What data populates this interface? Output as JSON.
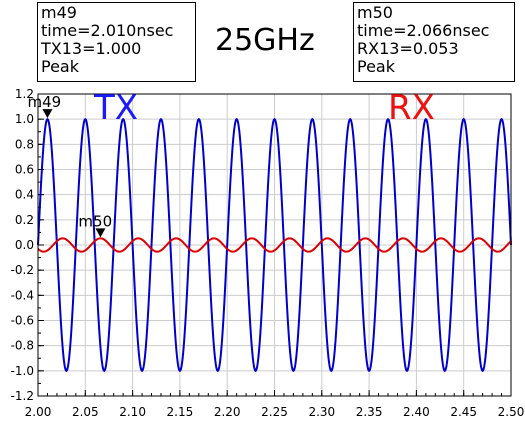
{
  "title": "25GHz",
  "colors": {
    "tx": "#1a1aff",
    "rx": "#ee1111",
    "tx_line": "#0000cc",
    "rx_line": "#dd0000",
    "frame": "#000000"
  },
  "markers": [
    {
      "id": "m49",
      "time": "time=2.010nsec",
      "value": "TX13=1.000",
      "kind": "Peak",
      "x": 2.01,
      "y": 1.0
    },
    {
      "id": "m50",
      "time": "time=2.066nsec",
      "value": "RX13=0.053",
      "kind": "Peak",
      "x": 2.066,
      "y": 0.053
    }
  ],
  "chart_data": {
    "type": "line",
    "title": "25GHz",
    "xlabel": "",
    "ylabel": "",
    "xlim": [
      2.0,
      2.5
    ],
    "ylim": [
      -1.2,
      1.2
    ],
    "x_ticks": [
      "2.00",
      "2.05",
      "2.10",
      "2.15",
      "2.20",
      "2.25",
      "2.30",
      "2.35",
      "2.40",
      "2.45",
      "2.50"
    ],
    "y_ticks": [
      "-1.2",
      "-1.0",
      "-0.8",
      "-0.6",
      "-0.4",
      "-0.2",
      "0.0",
      "0.2",
      "0.4",
      "0.6",
      "0.8",
      "1.0",
      "1.2"
    ],
    "series": [
      {
        "name": "TX",
        "frequency_ghz": 25,
        "amplitude": 1.0,
        "peak_at": 2.01,
        "offset": 0.0
      },
      {
        "name": "RX",
        "frequency_ghz": 25,
        "amplitude": 0.053,
        "peak_at": 2.066,
        "offset": 0.0
      }
    ]
  }
}
